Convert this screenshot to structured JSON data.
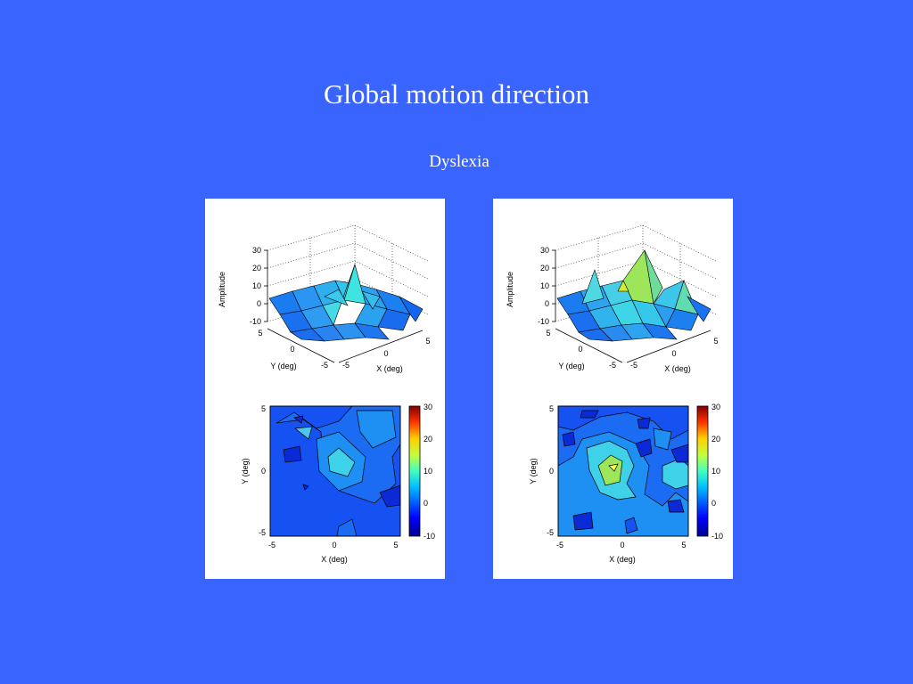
{
  "title": "Global motion direction",
  "subtitle": "Dyslexia",
  "colormap": [
    "#00008f",
    "#0000ff",
    "#0080ff",
    "#00ffff",
    "#80ff80",
    "#ffff00",
    "#ff8000",
    "#ff0000",
    "#800000"
  ],
  "chart_data": [
    {
      "type": "surface",
      "zlabel": "Amplitude",
      "xlabel": "X (deg)",
      "ylabel": "Y (deg)",
      "zlim": [
        -10,
        30
      ],
      "ztick_labels": [
        "30",
        "20",
        "10",
        "0",
        "-10"
      ],
      "xtick_labels": [
        "-5",
        "0",
        "5"
      ],
      "ytick_labels": [
        "5",
        "0",
        "-5"
      ],
      "grid": true
    },
    {
      "type": "heatmap",
      "subtype": "contour",
      "xlabel": "X (deg)",
      "ylabel": "Y (deg)",
      "xlim": [
        -5,
        5
      ],
      "ylim": [
        -5,
        5
      ],
      "xtick_labels": [
        "-5",
        "0",
        "5"
      ],
      "ytick_labels": [
        "5",
        "0",
        "-5"
      ],
      "colorbar_tick_labels": [
        "30",
        "20",
        "10",
        "0",
        "-10"
      ],
      "colorbar_range": [
        -10,
        30
      ]
    },
    {
      "type": "surface",
      "zlabel": "Amplitude",
      "xlabel": "X (deg)",
      "ylabel": "Y (deg)",
      "zlim": [
        -10,
        30
      ],
      "ztick_labels": [
        "30",
        "20",
        "10",
        "0",
        "-10"
      ],
      "xtick_labels": [
        "-5",
        "0",
        "5"
      ],
      "ytick_labels": [
        "5",
        "0",
        "-5"
      ],
      "grid": true
    },
    {
      "type": "heatmap",
      "subtype": "contour",
      "xlabel": "X (deg)",
      "ylabel": "Y (deg)",
      "xlim": [
        -5,
        5
      ],
      "ylim": [
        -5,
        5
      ],
      "xtick_labels": [
        "-5",
        "0",
        "5"
      ],
      "ytick_labels": [
        "5",
        "0",
        "-5"
      ],
      "colorbar_tick_labels": [
        "30",
        "20",
        "10",
        "0",
        "-10"
      ],
      "colorbar_range": [
        -10,
        30
      ]
    }
  ]
}
